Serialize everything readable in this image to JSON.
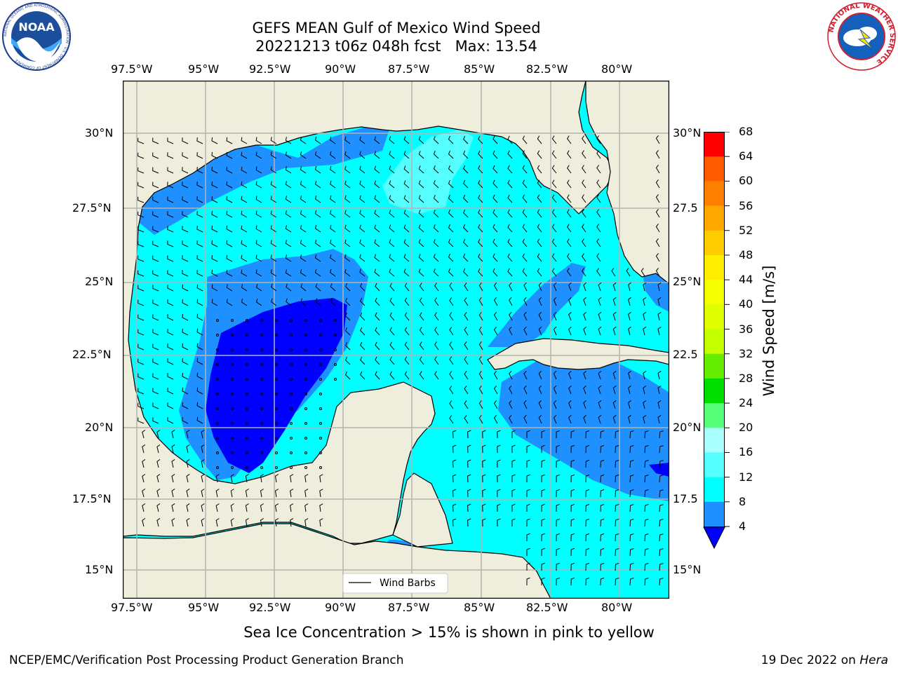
{
  "title": {
    "line1": "GEFS MEAN Gulf of Mexico Wind Speed",
    "line2_run": "20221213 t06z 048h fcst",
    "line2_max": "Max: 13.54"
  },
  "logos": {
    "left": {
      "icon": "noaa-logo",
      "text": "NOAA",
      "ring_text": "NATIONAL OCEANIC AND ATMOSPHERIC ADMINISTRATION · U.S. DEPARTMENT OF COMMERCE"
    },
    "right": {
      "icon": "nws-logo",
      "ring_text": "NATIONAL WEATHER SERVICE"
    }
  },
  "map": {
    "lon_ticks": [
      "97.5°W",
      "95°W",
      "92.5°W",
      "90°W",
      "87.5°W",
      "85°W",
      "82.5°W",
      "80°W"
    ],
    "lat_ticks_left": [
      "30°N",
      "27.5°N",
      "25°N",
      "22.5°N",
      "20°N",
      "17.5°N",
      "15°N"
    ],
    "lat_ticks_right": [
      "30°N",
      "27.5",
      "25°N",
      "22.5",
      "20°N",
      "17.5",
      "15°N"
    ],
    "legend_label": "Wind Barbs",
    "colors": {
      "land": "#efeddb",
      "grid": "#b3b3b3",
      "c4_8": "#1e90ff",
      "c8_12": "#00ffff",
      "c0_4": "#0000ff"
    }
  },
  "colorbar": {
    "label": "Wind Speed [m/s]",
    "ticks": [
      "68",
      "64",
      "60",
      "56",
      "52",
      "48",
      "44",
      "40",
      "36",
      "32",
      "28",
      "24",
      "20",
      "16",
      "12",
      "8",
      "4"
    ],
    "colors": [
      "#ff0000",
      "#ff3000",
      "#ff5a00",
      "#ff8000",
      "#ffa800",
      "#ffcc00",
      "#ffee00",
      "#f4ff00",
      "#e0ff00",
      "#c6ff00",
      "#66ee00",
      "#00dd00",
      "#55ff77",
      "#aaffff",
      "#55ffff",
      "#00ffff",
      "#1e90ff"
    ],
    "extend_color": "#0000ff"
  },
  "bottom_note": "Sea Ice Concentration > 15% is shown in pink to yellow",
  "footer": {
    "left": "NCEP/EMC/Verification Post Processing Product Generation Branch",
    "right_prefix": "19 Dec 2022 on ",
    "right_host": "Hera"
  }
}
